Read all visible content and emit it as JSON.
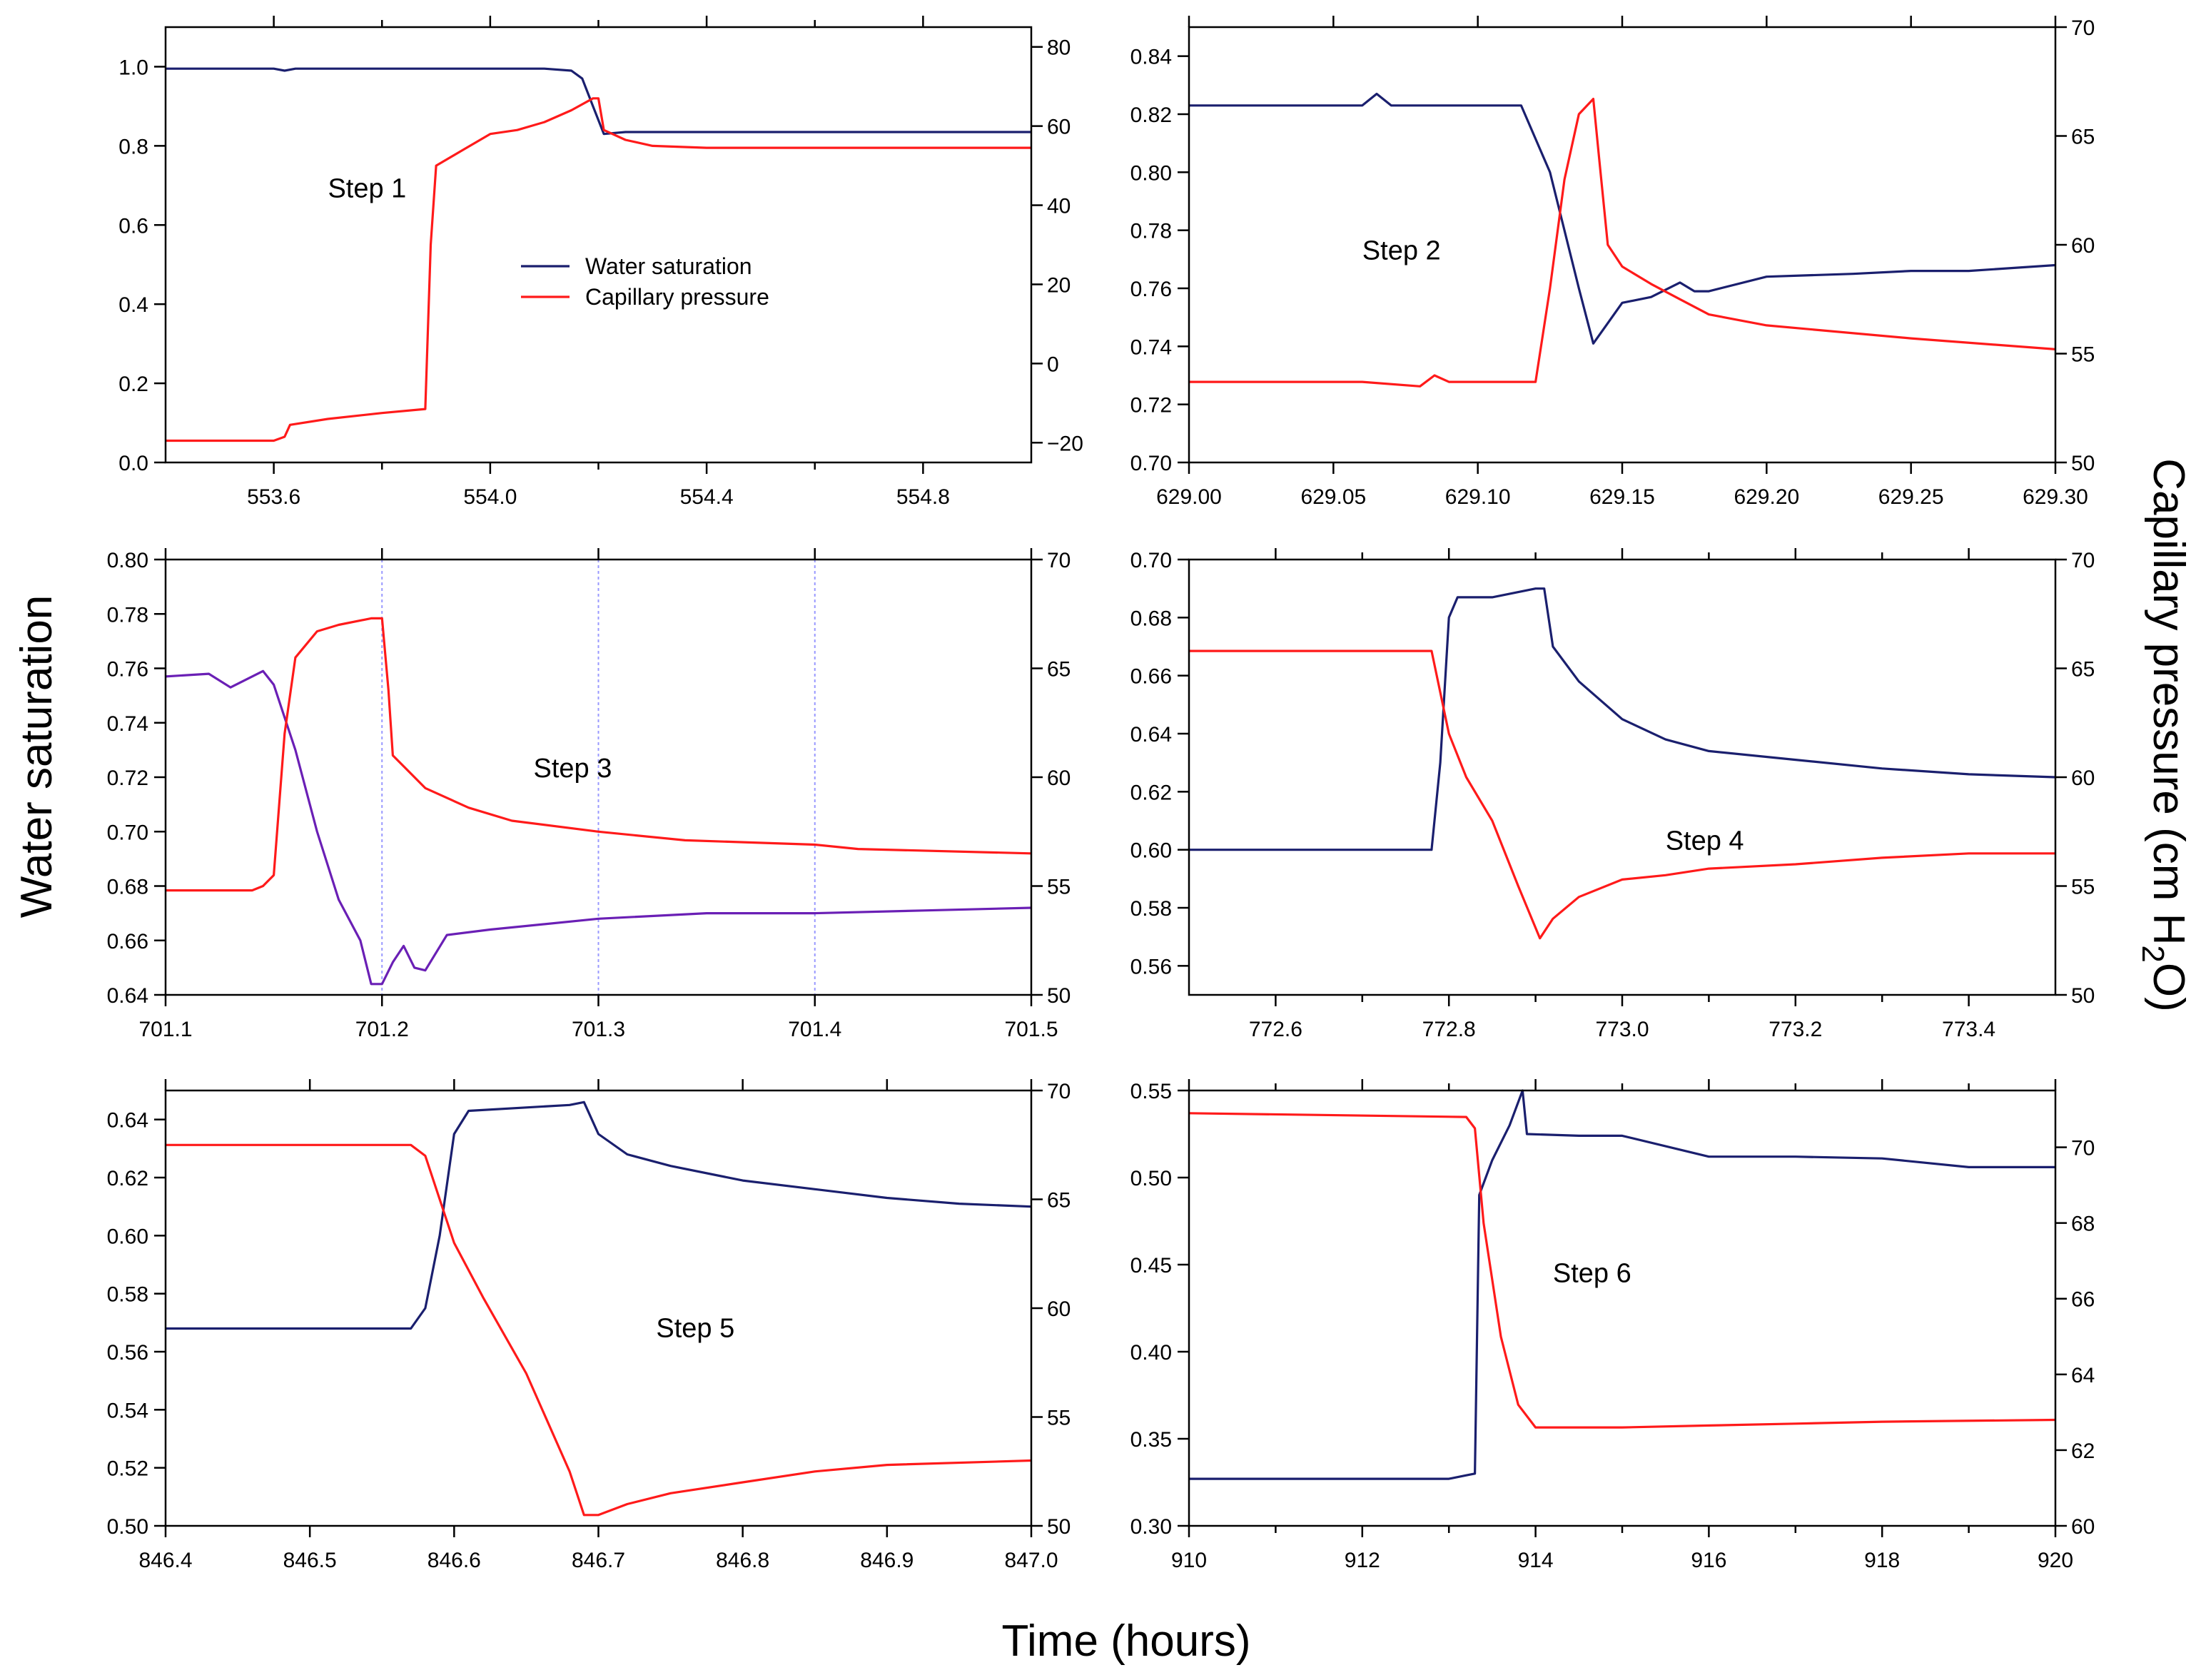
{
  "figure": {
    "xlabel": "Time (hours)",
    "ylabel_left": "Water saturation",
    "ylabel_right_prefix": "Capillary pressure (cm H",
    "ylabel_right_sub": "2",
    "ylabel_right_suffix": "O)",
    "legend": {
      "series1": "Water saturation",
      "series2": "Capillary pressure"
    },
    "colors": {
      "saturation": "#1a1f6e",
      "saturation_step3": "#6a1fb5",
      "pressure": "#ff1a1a",
      "guide": "#9999ff"
    }
  },
  "chart_data": [
    {
      "type": "line",
      "panel": "Step 1",
      "title": "Step 1",
      "xlim": [
        553.4,
        555.0
      ],
      "xticks": [
        "553.6",
        "554.0",
        "554.4",
        "554.8"
      ],
      "xtick_values": [
        553.6,
        554.0,
        554.4,
        554.8
      ],
      "minor_xticks": [
        553.8,
        554.2,
        554.6
      ],
      "ylim_left": [
        0.0,
        1.1
      ],
      "yticks_left": [
        "0.0",
        "0.2",
        "0.4",
        "0.6",
        "0.8",
        "1.0"
      ],
      "ytick_values_left": [
        0.0,
        0.2,
        0.4,
        0.6,
        0.8,
        1.0
      ],
      "ylim_right": [
        -25,
        85
      ],
      "yticks_right": [
        "−20",
        "0",
        "20",
        "40",
        "60",
        "80"
      ],
      "ytick_values_right": [
        -20,
        0,
        20,
        40,
        60,
        80
      ],
      "series": [
        {
          "name": "Water saturation",
          "axis": "left",
          "x": [
            553.4,
            553.6,
            553.62,
            553.64,
            553.8,
            554.0,
            554.1,
            554.15,
            554.17,
            554.19,
            554.21,
            554.25,
            554.4,
            554.6,
            554.8,
            555.0
          ],
          "y": [
            0.995,
            0.995,
            0.99,
            0.995,
            0.995,
            0.995,
            0.995,
            0.99,
            0.97,
            0.9,
            0.83,
            0.835,
            0.835,
            0.835,
            0.835,
            0.835
          ]
        },
        {
          "name": "Capillary pressure",
          "axis": "right",
          "x": [
            553.4,
            553.6,
            553.62,
            553.63,
            553.7,
            553.8,
            553.88,
            553.89,
            553.9,
            553.95,
            554.0,
            554.05,
            554.1,
            554.15,
            554.19,
            554.2,
            554.21,
            554.25,
            554.3,
            554.4,
            554.6,
            555.0
          ],
          "y": [
            -19.5,
            -19.5,
            -18.5,
            -15.5,
            -14,
            -12.5,
            -11.5,
            30,
            50,
            54,
            58,
            59,
            61,
            64,
            67,
            67,
            59,
            56.5,
            55,
            54.5,
            54.5,
            54.5
          ]
        }
      ],
      "annotations": [
        {
          "text": "Step 1",
          "x": 553.7,
          "y": 0.67
        }
      ],
      "legend": {
        "entries": [
          "Water saturation",
          "Capillary pressure"
        ]
      }
    },
    {
      "type": "line",
      "panel": "Step 2",
      "title": "Step 2",
      "xlim": [
        629.0,
        629.3
      ],
      "xticks": [
        "629.00",
        "629.05",
        "629.10",
        "629.15",
        "629.20",
        "629.25",
        "629.30"
      ],
      "xtick_values": [
        629.0,
        629.05,
        629.1,
        629.15,
        629.2,
        629.25,
        629.3
      ],
      "ylim_left": [
        0.7,
        0.85
      ],
      "yticks_left": [
        "0.70",
        "0.72",
        "0.74",
        "0.76",
        "0.78",
        "0.80",
        "0.82",
        "0.84"
      ],
      "ytick_values_left": [
        0.7,
        0.72,
        0.74,
        0.76,
        0.78,
        0.8,
        0.82,
        0.84
      ],
      "ylim_right": [
        50,
        70
      ],
      "yticks_right": [
        "50",
        "55",
        "60",
        "65",
        "70"
      ],
      "ytick_values_right": [
        50,
        55,
        60,
        65,
        70
      ],
      "series": [
        {
          "name": "Water saturation",
          "axis": "left",
          "x": [
            629.0,
            629.02,
            629.06,
            629.065,
            629.07,
            629.1,
            629.115,
            629.125,
            629.135,
            629.14,
            629.145,
            629.15,
            629.16,
            629.17,
            629.175,
            629.18,
            629.2,
            629.23,
            629.25,
            629.27,
            629.3
          ],
          "y": [
            0.823,
            0.823,
            0.823,
            0.827,
            0.823,
            0.823,
            0.823,
            0.8,
            0.76,
            0.741,
            0.748,
            0.755,
            0.757,
            0.762,
            0.759,
            0.759,
            0.764,
            0.765,
            0.766,
            0.766,
            0.768
          ]
        },
        {
          "name": "Capillary pressure",
          "axis": "right",
          "x": [
            629.0,
            629.06,
            629.08,
            629.085,
            629.09,
            629.12,
            629.125,
            629.13,
            629.135,
            629.14,
            629.142,
            629.145,
            629.15,
            629.16,
            629.17,
            629.18,
            629.2,
            629.25,
            629.3
          ],
          "y": [
            53.7,
            53.7,
            53.5,
            54,
            53.7,
            53.7,
            58,
            63,
            66,
            66.7,
            64,
            60,
            59,
            58.2,
            57.5,
            56.8,
            56.3,
            55.7,
            55.2
          ]
        }
      ],
      "annotations": [
        {
          "text": "Step 2",
          "x": 629.06,
          "y": 0.77
        }
      ]
    },
    {
      "type": "line",
      "panel": "Step 3",
      "title": "Step 3",
      "xlim": [
        701.1,
        701.5
      ],
      "xticks": [
        "701.1",
        "701.2",
        "701.3",
        "701.4",
        "701.5"
      ],
      "xtick_values": [
        701.1,
        701.2,
        701.3,
        701.4,
        701.5
      ],
      "guide_lines_x": [
        701.2,
        701.3,
        701.4
      ],
      "ylim_left": [
        0.64,
        0.8
      ],
      "yticks_left": [
        "0.64",
        "0.66",
        "0.68",
        "0.70",
        "0.72",
        "0.74",
        "0.76",
        "0.78",
        "0.80"
      ],
      "ytick_values_left": [
        0.64,
        0.66,
        0.68,
        0.7,
        0.72,
        0.74,
        0.76,
        0.78,
        0.8
      ],
      "ylim_right": [
        50,
        70
      ],
      "yticks_right": [
        "50",
        "55",
        "60",
        "65",
        "70"
      ],
      "ytick_values_right": [
        50,
        55,
        60,
        65,
        70
      ],
      "series": [
        {
          "name": "Water saturation",
          "axis": "left",
          "x": [
            701.1,
            701.12,
            701.13,
            701.14,
            701.145,
            701.15,
            701.16,
            701.17,
            701.18,
            701.19,
            701.195,
            701.2,
            701.205,
            701.21,
            701.215,
            701.22,
            701.23,
            701.25,
            701.3,
            701.35,
            701.4,
            701.45,
            701.5
          ],
          "y": [
            0.757,
            0.758,
            0.753,
            0.757,
            0.759,
            0.754,
            0.73,
            0.7,
            0.675,
            0.66,
            0.644,
            0.644,
            0.652,
            0.658,
            0.65,
            0.649,
            0.662,
            0.664,
            0.668,
            0.67,
            0.67,
            0.671,
            0.672
          ]
        },
        {
          "name": "Capillary pressure",
          "axis": "right",
          "x": [
            701.1,
            701.14,
            701.145,
            701.15,
            701.155,
            701.16,
            701.17,
            701.18,
            701.195,
            701.2,
            701.203,
            701.205,
            701.21,
            701.22,
            701.24,
            701.26,
            701.3,
            701.34,
            701.4,
            701.42,
            701.5
          ],
          "y": [
            54.8,
            54.8,
            55,
            55.5,
            62,
            65.5,
            66.7,
            67,
            67.3,
            67.3,
            64,
            61,
            60.5,
            59.5,
            58.6,
            58,
            57.5,
            57.1,
            56.9,
            56.7,
            56.5
          ]
        }
      ],
      "annotations": [
        {
          "text": "Step 3",
          "x": 701.27,
          "y": 0.72
        }
      ]
    },
    {
      "type": "line",
      "panel": "Step 4",
      "title": "Step 4",
      "xlim": [
        772.5,
        773.5
      ],
      "xticks": [
        "772.6",
        "772.8",
        "773.0",
        "773.2",
        "773.4"
      ],
      "xtick_values": [
        772.6,
        772.8,
        773.0,
        773.2,
        773.4
      ],
      "minor_xticks": [
        772.7,
        772.9,
        773.1,
        773.3
      ],
      "ylim_left": [
        0.55,
        0.7
      ],
      "yticks_left": [
        "0.56",
        "0.58",
        "0.60",
        "0.62",
        "0.64",
        "0.66",
        "0.68",
        "0.70"
      ],
      "ytick_values_left": [
        0.56,
        0.58,
        0.6,
        0.62,
        0.64,
        0.66,
        0.68,
        0.7
      ],
      "ylim_right": [
        50,
        70
      ],
      "yticks_right": [
        "50",
        "55",
        "60",
        "65",
        "70"
      ],
      "ytick_values_right": [
        50,
        55,
        60,
        65,
        70
      ],
      "series": [
        {
          "name": "Water saturation",
          "axis": "left",
          "x": [
            772.5,
            772.78,
            772.79,
            772.8,
            772.81,
            772.85,
            772.9,
            772.91,
            772.92,
            772.95,
            773.0,
            773.05,
            773.1,
            773.2,
            773.3,
            773.4,
            773.5
          ],
          "y": [
            0.6,
            0.6,
            0.63,
            0.68,
            0.687,
            0.687,
            0.69,
            0.69,
            0.67,
            0.658,
            0.645,
            0.638,
            0.634,
            0.631,
            0.628,
            0.626,
            0.625
          ]
        },
        {
          "name": "Capillary pressure",
          "axis": "right",
          "x": [
            772.5,
            772.78,
            772.8,
            772.82,
            772.85,
            772.88,
            772.905,
            772.92,
            772.95,
            773.0,
            773.05,
            773.1,
            773.2,
            773.3,
            773.4,
            773.5
          ],
          "y": [
            65.8,
            65.8,
            62,
            60,
            58,
            55,
            52.6,
            53.5,
            54.5,
            55.3,
            55.5,
            55.8,
            56,
            56.3,
            56.5,
            56.5
          ]
        }
      ],
      "annotations": [
        {
          "text": "Step 4",
          "x": 773.05,
          "y": 0.6
        }
      ]
    },
    {
      "type": "line",
      "panel": "Step 5",
      "title": "Step 5",
      "xlim": [
        846.4,
        847.0
      ],
      "xticks": [
        "846.4",
        "846.5",
        "846.6",
        "846.7",
        "846.8",
        "846.9",
        "847.0"
      ],
      "xtick_values": [
        846.4,
        846.5,
        846.6,
        846.7,
        846.8,
        846.9,
        847.0
      ],
      "ylim_left": [
        0.5,
        0.65
      ],
      "yticks_left": [
        "0.50",
        "0.52",
        "0.54",
        "0.56",
        "0.58",
        "0.60",
        "0.62",
        "0.64"
      ],
      "ytick_values_left": [
        0.5,
        0.52,
        0.54,
        0.56,
        0.58,
        0.6,
        0.62,
        0.64
      ],
      "ylim_right": [
        50,
        70
      ],
      "yticks_right": [
        "50",
        "55",
        "60",
        "65",
        "70"
      ],
      "ytick_values_right": [
        50,
        55,
        60,
        65,
        70
      ],
      "series": [
        {
          "name": "Water saturation",
          "axis": "left",
          "x": [
            846.4,
            846.57,
            846.58,
            846.59,
            846.6,
            846.61,
            846.68,
            846.69,
            846.7,
            846.72,
            846.75,
            846.8,
            846.85,
            846.9,
            846.95,
            847.0
          ],
          "y": [
            0.568,
            0.568,
            0.575,
            0.6,
            0.635,
            0.643,
            0.645,
            0.646,
            0.635,
            0.628,
            0.624,
            0.619,
            0.616,
            0.613,
            0.611,
            0.61
          ]
        },
        {
          "name": "Capillary pressure",
          "axis": "right",
          "x": [
            846.4,
            846.57,
            846.58,
            846.6,
            846.62,
            846.65,
            846.68,
            846.69,
            846.7,
            846.72,
            846.75,
            846.8,
            846.85,
            846.9,
            847.0
          ],
          "y": [
            67.5,
            67.5,
            67,
            63,
            60.5,
            57,
            52.5,
            50.5,
            50.5,
            51,
            51.5,
            52,
            52.5,
            52.8,
            53
          ]
        }
      ],
      "annotations": [
        {
          "text": "Step 5",
          "x": 846.74,
          "y": 0.565
        }
      ]
    },
    {
      "type": "line",
      "panel": "Step 6",
      "title": "Step 6",
      "xlim": [
        910,
        920
      ],
      "xticks": [
        "910",
        "912",
        "914",
        "916",
        "918",
        "920"
      ],
      "xtick_values": [
        910,
        912,
        914,
        916,
        918,
        920
      ],
      "minor_xticks": [
        911,
        913,
        915,
        917,
        919
      ],
      "ylim_left": [
        0.3,
        0.55
      ],
      "yticks_left": [
        "0.30",
        "0.35",
        "0.40",
        "0.45",
        "0.50",
        "0.55"
      ],
      "ytick_values_left": [
        0.3,
        0.35,
        0.4,
        0.45,
        0.5,
        0.55
      ],
      "ylim_right": [
        60,
        71.5
      ],
      "yticks_right": [
        "60",
        "62",
        "64",
        "66",
        "68",
        "70"
      ],
      "ytick_values_right": [
        60,
        62,
        64,
        66,
        68,
        70
      ],
      "series": [
        {
          "name": "Water saturation",
          "axis": "left",
          "x": [
            910,
            913.0,
            913.2,
            913.3,
            913.35,
            913.5,
            913.7,
            913.85,
            913.9,
            914.5,
            915.0,
            916.0,
            917.0,
            918.0,
            919.0,
            920.0
          ],
          "y": [
            0.327,
            0.327,
            0.329,
            0.33,
            0.49,
            0.51,
            0.53,
            0.55,
            0.525,
            0.524,
            0.524,
            0.512,
            0.512,
            0.511,
            0.506,
            0.506
          ]
        },
        {
          "name": "Capillary pressure",
          "axis": "right",
          "x": [
            910,
            913.2,
            913.3,
            913.4,
            913.6,
            913.8,
            914.0,
            915.0,
            916.0,
            917.0,
            918.0,
            920.0
          ],
          "y": [
            70.9,
            70.8,
            70.5,
            68,
            65,
            63.2,
            62.6,
            62.6,
            62.65,
            62.7,
            62.75,
            62.8
          ]
        }
      ],
      "annotations": [
        {
          "text": "Step 6",
          "x": 914.2,
          "y": 0.44
        }
      ]
    }
  ]
}
